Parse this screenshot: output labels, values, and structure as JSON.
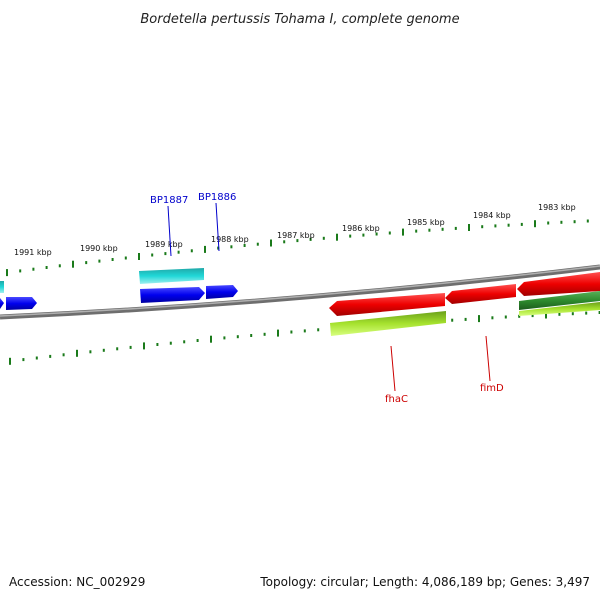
{
  "title": "Bordetella pertussis Tohama I, complete genome",
  "footer": {
    "accession": "Accession: NC_002929",
    "summary": "Topology: circular; Length: 4,086,189 bp; Genes: 3,497"
  },
  "scale_labels": [
    "1991 kbp",
    "1990 kbp",
    "1989 kbp",
    "1988 kbp",
    "1987 kbp",
    "1986 kbp",
    "1985 kbp",
    "1984 kbp",
    "1983 kbp"
  ],
  "gene_labels": [
    {
      "text": "BP1887",
      "color": "#0000cc"
    },
    {
      "text": "BP1886",
      "color": "#0000cc"
    },
    {
      "text": "fhaC",
      "color": "#cc0000"
    },
    {
      "text": "fimD",
      "color": "#cc0000"
    }
  ],
  "colors": {
    "backbone": "#808080",
    "tick": "#1a7a1a",
    "blue_cds": "#0000ee",
    "cyan_cds": "#10c0c0",
    "red_cds": "#ee0000",
    "lime_cds": "#a6e22e",
    "dark_green_cds": "#2e8b2e"
  }
}
